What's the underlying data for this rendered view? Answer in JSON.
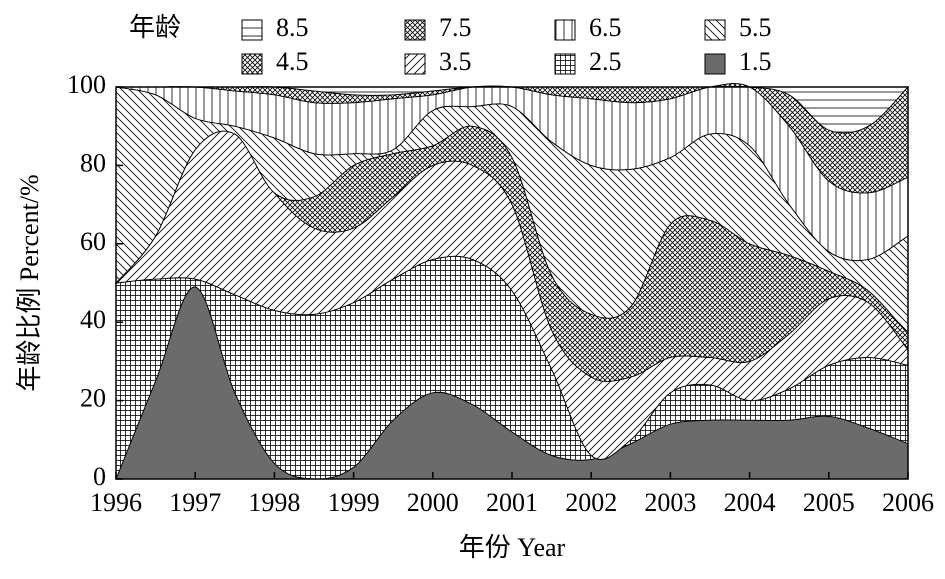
{
  "chart_data": {
    "type": "stacked_area",
    "xlabel": "年份 Year",
    "ylabel": "年龄比例 Percent/%",
    "legend_title": "年龄",
    "x": [
      1996,
      1996.5,
      1997,
      1997.5,
      1998,
      1998.5,
      1999,
      1999.5,
      2000,
      2000.5,
      2001,
      2001.5,
      2002,
      2002.5,
      2003,
      2003.5,
      2004,
      2004.5,
      2005,
      2005.5,
      2006
    ],
    "xlim": [
      1996,
      2006
    ],
    "xticks": [
      1996,
      1997,
      1998,
      1999,
      2000,
      2001,
      2002,
      2003,
      2004,
      2005,
      2006
    ],
    "ylim": [
      0,
      100
    ],
    "yticks": [
      0,
      20,
      40,
      60,
      80,
      100
    ],
    "series": [
      {
        "name": "1.5",
        "color": "#6b6b6b",
        "pattern": "solid",
        "values": [
          0,
          25,
          49,
          22,
          4,
          0,
          3,
          15,
          22,
          19,
          12,
          6,
          5,
          9,
          14,
          15,
          15,
          15,
          16,
          13,
          9
        ]
      },
      {
        "name": "2.5",
        "color": "#000000",
        "pattern": "grid",
        "values": [
          50,
          26,
          2,
          25,
          39,
          42,
          42,
          36,
          34,
          37,
          36,
          22,
          1,
          1,
          8,
          9,
          5,
          8,
          13,
          18,
          20
        ]
      },
      {
        "name": "3.5",
        "color": "#000000",
        "pattern": "slash",
        "values": [
          0,
          11,
          33,
          41,
          30,
          22,
          19,
          21,
          24,
          24,
          22,
          10,
          20,
          16,
          9,
          7,
          10,
          14,
          17,
          14,
          4
        ]
      },
      {
        "name": "4.5",
        "color": "#000000",
        "pattern": "crosshatch",
        "values": [
          0,
          0,
          0,
          0,
          0,
          8,
          16,
          11,
          5,
          10,
          12,
          14,
          16,
          18,
          34,
          35,
          30,
          20,
          7,
          3,
          4
        ]
      },
      {
        "name": "5.5",
        "color": "#000000",
        "pattern": "backslash",
        "values": [
          50,
          36,
          8,
          2,
          14,
          11,
          3,
          1,
          9,
          5,
          13,
          34,
          38,
          35,
          17,
          22,
          25,
          13,
          5,
          8,
          25
        ]
      },
      {
        "name": "6.5",
        "color": "#000000",
        "pattern": "vertical",
        "values": [
          0,
          2,
          8,
          9,
          11,
          13,
          13,
          13,
          4,
          5,
          5,
          12,
          17,
          17,
          15,
          12,
          15,
          20,
          18,
          17,
          15
        ]
      },
      {
        "name": "7.5",
        "color": "#000000",
        "pattern": "crosshatch",
        "values": [
          0,
          0,
          0,
          1,
          2,
          3,
          2,
          1,
          1,
          0,
          0,
          2,
          3,
          4,
          3,
          0,
          0,
          8,
          13,
          17,
          23
        ]
      },
      {
        "name": "8.5",
        "color": "#000000",
        "pattern": "horizontal",
        "values": [
          0,
          0,
          0,
          0,
          0,
          1,
          2,
          2,
          1,
          0,
          0,
          0,
          0,
          0,
          0,
          0,
          0,
          2,
          11,
          10,
          0
        ]
      }
    ]
  }
}
